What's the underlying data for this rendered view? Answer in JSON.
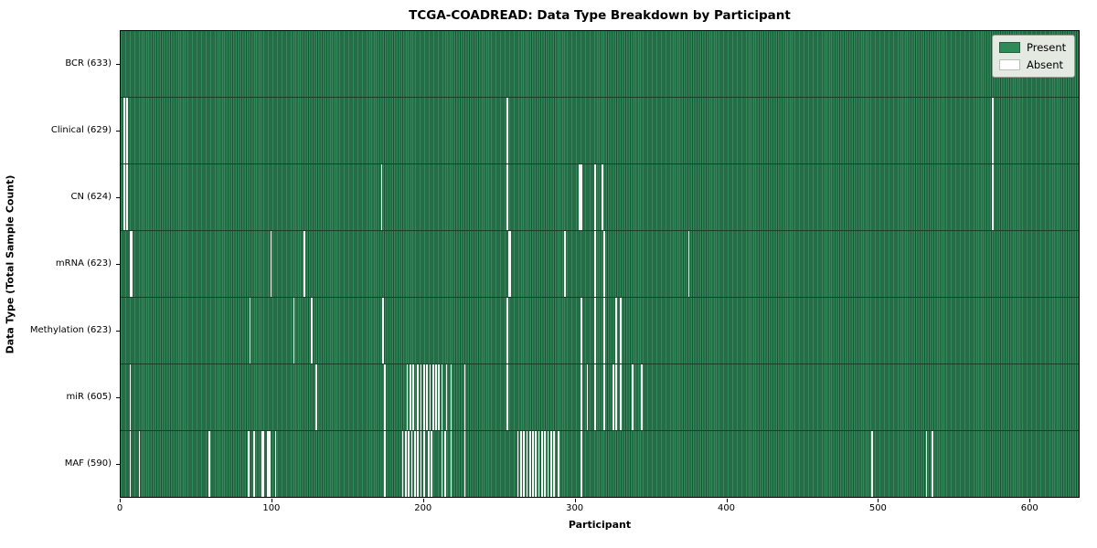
{
  "title": "TCGA-COADREAD: Data Type Breakdown by Participant",
  "legend": {
    "present_label": "Present",
    "absent_label": "Absent"
  },
  "colors": {
    "present": "#2e8b57",
    "present_edge": "#1b5134",
    "absent": "#ffffff",
    "legend_bg": "#e4eae2",
    "plot_border": "#000000"
  },
  "chart_data": {
    "type": "heatmap",
    "title": "TCGA-COADREAD: Data Type Breakdown by Participant",
    "xlabel": "Participant",
    "ylabel": "Data Type (Total Sample Count)",
    "legend": [
      "Present",
      "Absent"
    ],
    "legend_position": "upper right",
    "grid": false,
    "n_participants": 633,
    "xlim": [
      0,
      633
    ],
    "x_ticks": [
      0,
      100,
      200,
      300,
      400,
      500,
      600
    ],
    "rows": [
      {
        "label": "BCR (633)",
        "name": "BCR",
        "present_count": 633,
        "absent_participants": []
      },
      {
        "label": "Clinical (629)",
        "name": "Clinical",
        "present_count": 629,
        "absent_participants": [
          2,
          4,
          255,
          576
        ]
      },
      {
        "label": "CN (624)",
        "name": "CN",
        "present_count": 624,
        "absent_participants": [
          2,
          4,
          172,
          255,
          303,
          304,
          313,
          318,
          576
        ]
      },
      {
        "label": "mRNA (623)",
        "name": "mRNA",
        "present_count": 623,
        "absent_participants": [
          6,
          7,
          99,
          121,
          256,
          257,
          293,
          313,
          319,
          375
        ]
      },
      {
        "label": "Methylation (623)",
        "name": "Methylation",
        "present_count": 623,
        "absent_participants": [
          85,
          114,
          126,
          173,
          255,
          304,
          313,
          319,
          327,
          330
        ]
      },
      {
        "label": "miR (605)",
        "name": "miR",
        "present_count": 605,
        "absent_participants": [
          6,
          129,
          174,
          189,
          191,
          193,
          196,
          198,
          200,
          202,
          204,
          206,
          208,
          210,
          212,
          215,
          218,
          227,
          255,
          304,
          308,
          313,
          319,
          325,
          327,
          330,
          338,
          344
        ]
      },
      {
        "label": "MAF (590)",
        "name": "MAF",
        "present_count": 590,
        "absent_participants": [
          6,
          12,
          58,
          84,
          88,
          93,
          94,
          97,
          98,
          102,
          174,
          186,
          188,
          190,
          192,
          194,
          196,
          198,
          200,
          203,
          205,
          212,
          214,
          218,
          227,
          262,
          264,
          266,
          268,
          270,
          272,
          274,
          276,
          278,
          280,
          282,
          284,
          286,
          289,
          304,
          496,
          532,
          536
        ]
      }
    ]
  }
}
